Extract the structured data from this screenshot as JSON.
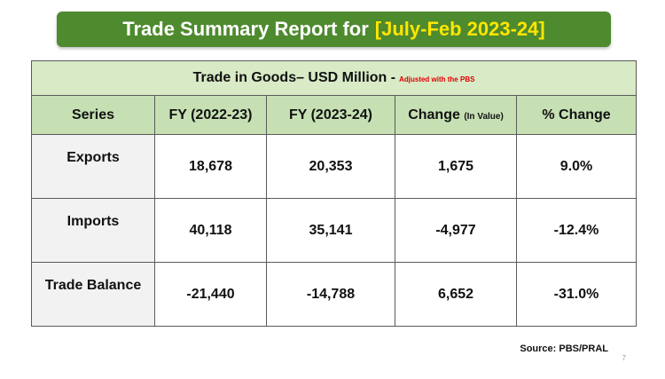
{
  "banner": {
    "title_prefix": "Trade Summary Report for",
    "title_period": "[July-Feb 2023-24]"
  },
  "table": {
    "caption": "Trade in Goods– USD Million -",
    "caption_note": "Adjusted with the PBS",
    "headers": {
      "series": "Series",
      "fy1": "FY (2022-23)",
      "fy2": "FY (2023-24)",
      "change": "Change",
      "change_sub": "(In Value)",
      "pct_change": "% Change"
    },
    "rows": [
      {
        "series": "Exports",
        "fy1": "18,678",
        "fy2": "20,353",
        "change": "1,675",
        "pct_change": "9.0%"
      },
      {
        "series": "Imports",
        "fy1": "40,118",
        "fy2": "35,141",
        "change": "-4,977",
        "pct_change": "-12.4%"
      },
      {
        "series": "Trade Balance",
        "fy1": "-21,440",
        "fy2": "-14,788",
        "change": "6,652",
        "pct_change": "-31.0%"
      }
    ]
  },
  "footer": {
    "source": "Source: PBS/PRAL",
    "page_number": "7"
  },
  "colors": {
    "banner_bg": "#4e8a2e",
    "banner_highlight": "#ffe600",
    "caption_bg": "#d8eac6",
    "header_bg": "#c6e0b4",
    "series_bg": "#f2f2f2",
    "note_red": "#e00000"
  }
}
